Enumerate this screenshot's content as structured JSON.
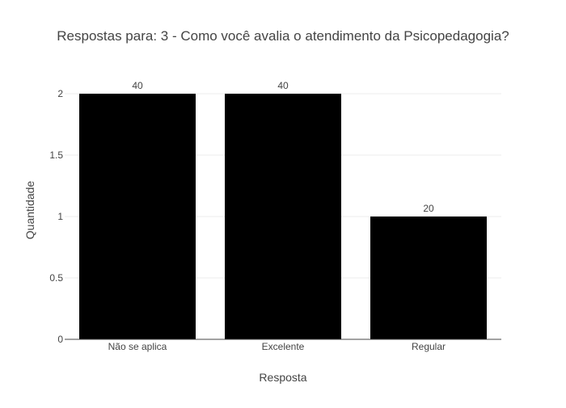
{
  "chart_data": {
    "type": "bar",
    "title": "Respostas para: 3 - Como você avalia o atendimento da Psicopedagogia?",
    "xlabel": "Resposta",
    "ylabel": "Quantidade",
    "categories": [
      "Não se aplica",
      "Excelente",
      "Regular"
    ],
    "values": [
      2,
      2,
      1
    ],
    "data_labels": [
      "40",
      "40",
      "20"
    ],
    "ylim": [
      0,
      2
    ],
    "yticks": [
      0,
      0.5,
      1,
      1.5,
      2
    ],
    "ytick_labels": [
      "0",
      "0.5",
      "1",
      "1.5",
      "2"
    ],
    "grid": true,
    "legend": "none",
    "colors": {
      "bar": "#000000",
      "grid": "#eeeeee",
      "axis": "#444444",
      "text": "#444444"
    }
  }
}
